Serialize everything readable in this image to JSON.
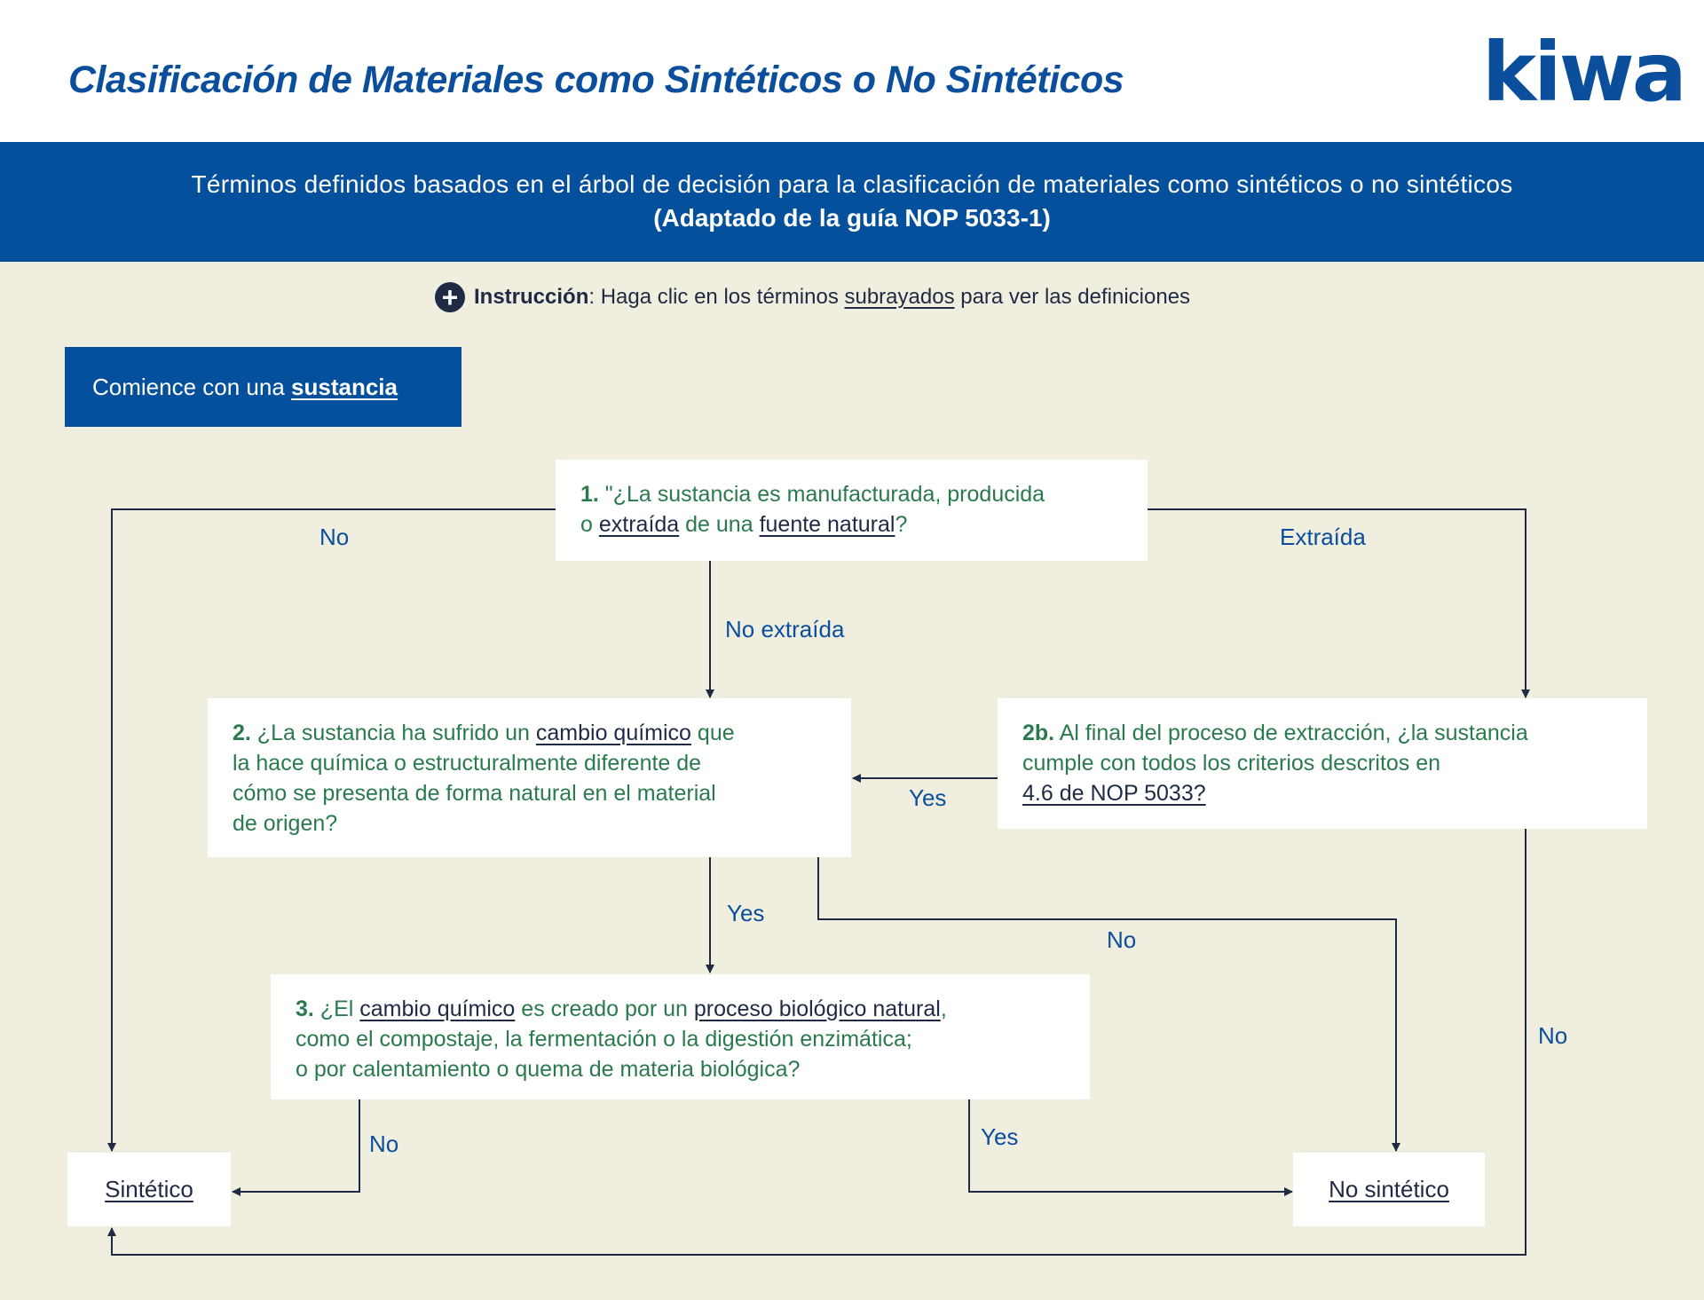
{
  "header": {
    "title": "Clasificación de Materiales como Sintéticos o No Sintéticos",
    "logo": "kiwa"
  },
  "banner": {
    "line1": "Términos definidos basados en el árbol de decisión para la clasificación de materiales como sintéticos o no sintéticos",
    "line2": "(Adaptado de la guía NOP 5033-1)"
  },
  "instruction": {
    "icon": "plus-circle-icon",
    "bold": "Instrucción",
    "colon": ":",
    "pre": " Haga clic en los términos ",
    "link": "subrayados",
    "post": " para ver las definiciones"
  },
  "start": {
    "pre": "Comience con una ",
    "link": "sustancia"
  },
  "colors": {
    "brand_blue": "#04509c",
    "question_green": "#2a7a4e",
    "link_navy": "#1f2a44",
    "background": "#f0eedf"
  },
  "boxes": {
    "q1": [
      {
        "t": "1.",
        "b": true
      },
      {
        "t": " \"¿La sustancia es manufacturada, producida\no "
      },
      {
        "t": "extraída",
        "u": true
      },
      {
        "t": " de una "
      },
      {
        "t": "fuente natural",
        "u": true
      },
      {
        "t": "?"
      }
    ],
    "q2": [
      {
        "t": "2.",
        "b": true
      },
      {
        "t": " ¿La sustancia ha sufrido un "
      },
      {
        "t": "cambio químico",
        "u": true
      },
      {
        "t": " que\nla hace química o estructuralmente diferente de\ncómo se presenta de forma natural en el material\nde origen?"
      }
    ],
    "q2b": [
      {
        "t": "2b.",
        "b": true
      },
      {
        "t": " Al final del proceso de extracción, ¿la sustancia\ncumple con todos los criterios descritos en\n"
      },
      {
        "t": "4.6 de NOP 5033?",
        "u": true
      }
    ],
    "q3": [
      {
        "t": "3.",
        "b": true
      },
      {
        "t": " ¿El "
      },
      {
        "t": "cambio químico",
        "u": true
      },
      {
        "t": " es creado por un "
      },
      {
        "t": "proceso biológico natural",
        "u": true
      },
      {
        "t": ",\ncomo el compostaje, la fermentación o la digestión enzimática;\no por calentamiento o quema de materia biológica?"
      }
    ]
  },
  "outcomes": {
    "synthetic": "Sintético",
    "nonsynthetic": "No sintético"
  },
  "edges": {
    "q1_no": "No",
    "q1_extracted": "Extraída",
    "q1_not_extracted": "No extraída",
    "q2b_yes": "Yes",
    "q2b_no": "No",
    "q2_yes": "Yes",
    "q2_no": "No",
    "q3_no": "No",
    "q3_yes": "Yes"
  }
}
